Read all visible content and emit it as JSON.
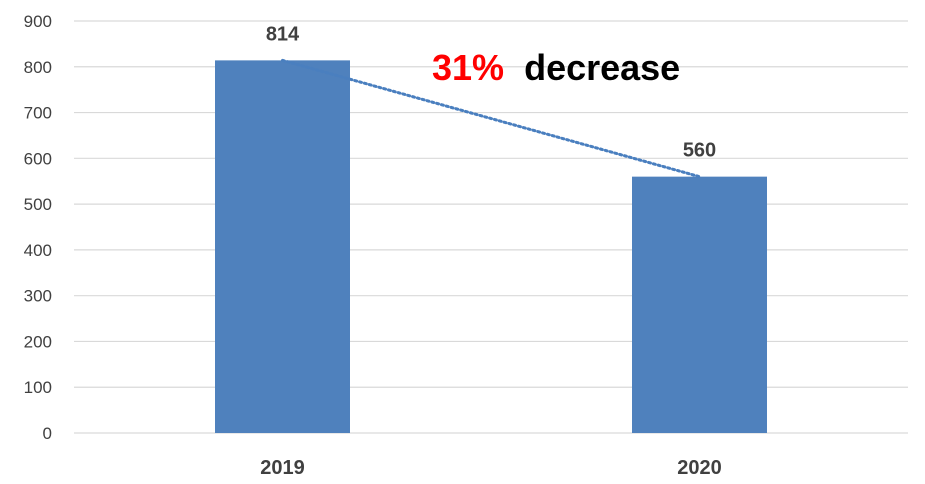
{
  "chart_data": {
    "type": "bar",
    "categories": [
      "2019",
      "2020"
    ],
    "values": [
      814,
      560
    ],
    "data_labels": [
      "814",
      "560"
    ],
    "title": "",
    "xlabel": "",
    "ylabel": "",
    "ylim": [
      0,
      900
    ],
    "yticks": [
      "0",
      "100",
      "200",
      "300",
      "400",
      "500",
      "600",
      "700",
      "800",
      "900"
    ],
    "grid": true,
    "legend": "none",
    "trendline": {
      "style": "dotted",
      "from": 814,
      "to": 560
    },
    "annotation": {
      "highlight": "31%",
      "text": "decrease"
    },
    "colors": {
      "bar": "#4f81bd",
      "trendline": "#4a7fbf",
      "grid": "#d9d9d9",
      "highlight": "#ff0000",
      "annotation": "#000000"
    }
  }
}
